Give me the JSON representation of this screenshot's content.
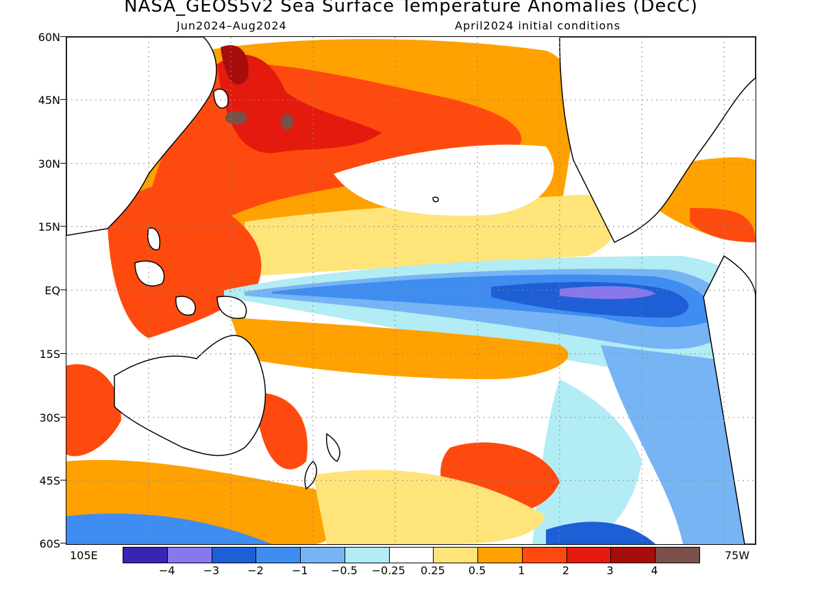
{
  "title": "NASA_GEOS5v2 Sea Surface Temperature Anomalies (DecC)",
  "subtitle_left": "Jun2024–Aug2024",
  "subtitle_right": "April2024 initial conditions",
  "map": {
    "region": "Pacific Ocean",
    "lat_range": [
      -60,
      60
    ],
    "lon_range": [
      "105E",
      "75W"
    ],
    "lat_labels": [
      "60N",
      "45N",
      "30N",
      "15N",
      "EQ",
      "15S",
      "30S",
      "45S",
      "60S"
    ],
    "lon_labels": [
      "105E",
      "75W"
    ],
    "grid": "dotted",
    "land_color": "#ffffff",
    "coastline_color": "#000000",
    "land_outlines": [
      "Asia",
      "Australia",
      "New Zealand",
      "North America",
      "South America",
      "Maritime Continent",
      "Hawaii"
    ],
    "features": {
      "cold_tongue": "equatorial eastern Pacific, strongest anomaly -3 to -4",
      "warm_north_pacific": "Kuroshio extension +2 to +4"
    }
  },
  "colorbar": {
    "colors": [
      "#3a24b6",
      "#8878ee",
      "#1e5fd6",
      "#3f8df0",
      "#77b4f4",
      "#b2ecf4",
      "#ffffff",
      "#ffe47a",
      "#ffa100",
      "#ff4a0f",
      "#e41a0f",
      "#a80d0d",
      "#7a5048"
    ],
    "labels": [
      "−4",
      "−3",
      "−2",
      "−1",
      "−0.5",
      "−0.25",
      "0.25",
      "0.5",
      "1",
      "2",
      "3",
      "4"
    ]
  }
}
